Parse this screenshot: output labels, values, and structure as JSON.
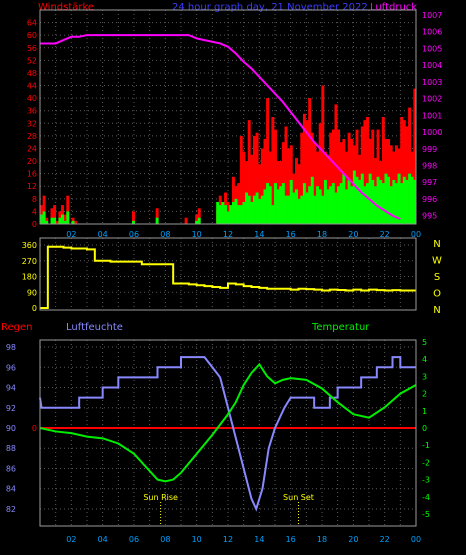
{
  "colors": {
    "background": "#000000",
    "frame": "#9a9a9a",
    "grid": "#5a5a5a",
    "wind_avg": "#ff0000",
    "wind_gust": "#00ff00",
    "wind_dark": "#0a0a0a",
    "pressure": "#ff00ff",
    "direction": "#ffff00",
    "rain": "#ff0000",
    "humidity": "#8888ff",
    "temperature": "#00ee00",
    "temp_axis": "#00ff00",
    "x_ticks": "#00a0ff",
    "press_axis": "#ff00ff",
    "hum_axis": "#8888ff",
    "compass": "#ffff00",
    "sun": "#ffff00"
  },
  "header": {
    "wind_title": "Windstärke",
    "date_title": "24 hour graph day, 21 November 2022",
    "pressure_title": "Luftdruck"
  },
  "chart_data": [
    {
      "type": "bar",
      "title": "Windstärke",
      "x_ticks": [
        "02",
        "04",
        "06",
        "08",
        "10",
        "12",
        "14",
        "16",
        "18",
        "20",
        "22",
        "00"
      ],
      "y_ticks": [
        0,
        4,
        8,
        12,
        16,
        20,
        24,
        28,
        32,
        36,
        40,
        44,
        48,
        52,
        56,
        60,
        64
      ],
      "ylim": [
        0,
        68
      ],
      "series": [
        {
          "name": "Windstärke",
          "samples_per_hour": 6,
          "values": [
            6,
            9,
            2,
            0,
            5,
            6,
            1,
            4,
            6,
            3,
            9,
            0,
            2,
            1,
            0,
            0,
            0,
            0,
            0,
            0,
            0,
            0,
            0,
            0,
            0,
            0,
            0,
            0,
            0,
            0,
            0,
            0,
            0,
            0,
            0,
            4,
            0,
            0,
            0,
            0,
            0,
            0,
            0,
            0,
            5,
            0,
            0,
            0,
            0,
            0,
            0,
            0,
            0,
            0,
            0,
            2,
            0,
            0,
            0,
            3,
            5,
            0,
            0,
            0,
            0,
            0,
            0,
            4,
            9,
            6,
            10,
            7,
            6,
            15,
            12,
            13,
            28,
            23,
            20,
            33,
            22,
            28,
            29,
            19,
            24,
            27,
            40,
            23,
            34,
            30,
            20,
            20,
            26,
            31,
            24,
            25,
            16,
            21,
            19,
            29,
            35,
            33,
            40,
            29,
            26,
            23,
            32,
            44,
            23,
            22,
            29,
            30,
            38,
            30,
            26,
            27,
            23,
            29,
            27,
            25,
            30,
            22,
            31,
            33,
            34,
            27,
            30,
            21,
            30,
            20,
            34,
            27,
            27,
            25,
            23,
            25,
            24,
            34,
            33,
            31,
            37,
            23,
            43
          ]
        },
        {
          "name": "Böen",
          "samples_per_hour": 6,
          "values": [
            3,
            4,
            1,
            0,
            2,
            2,
            0,
            2,
            3,
            1,
            4,
            0,
            1,
            0,
            0,
            0,
            0,
            0,
            0,
            0,
            0,
            0,
            0,
            0,
            0,
            0,
            0,
            0,
            0,
            0,
            0,
            0,
            0,
            0,
            0,
            1,
            0,
            0,
            0,
            0,
            0,
            0,
            0,
            0,
            2,
            0,
            0,
            0,
            0,
            0,
            0,
            0,
            0,
            0,
            0,
            0,
            0,
            0,
            0,
            1,
            2,
            0,
            0,
            0,
            0,
            0,
            0,
            7,
            6,
            7,
            6,
            4,
            6,
            7,
            8,
            6,
            6,
            7,
            10,
            9,
            7,
            9,
            10,
            8,
            9,
            11,
            13,
            12,
            6,
            13,
            11,
            12,
            13,
            9,
            9,
            14,
            10,
            11,
            8,
            9,
            13,
            10,
            12,
            15,
            9,
            12,
            11,
            9,
            14,
            11,
            12,
            13,
            10,
            12,
            13,
            16,
            11,
            14,
            12,
            17,
            15,
            14,
            16,
            12,
            13,
            16,
            14,
            12,
            15,
            14,
            13,
            16,
            15,
            12,
            14,
            13,
            16,
            13,
            15,
            14,
            16,
            15,
            14
          ]
        }
      ]
    },
    {
      "type": "line",
      "title": "Luftdruck",
      "y_ticks": [
        995,
        996,
        997,
        998,
        999,
        1000,
        1001,
        1002,
        1003,
        1004,
        1005,
        1006,
        1007
      ],
      "ylim": [
        994.5,
        1007.3
      ],
      "samples_per_hour": 2,
      "values": [
        1005.3,
        1005.3,
        1005.3,
        1005.5,
        1005.7,
        1005.7,
        1005.8,
        1005.8,
        1005.8,
        1005.8,
        1005.8,
        1005.8,
        1005.8,
        1005.8,
        1005.8,
        1005.8,
        1005.8,
        1005.8,
        1005.8,
        1005.8,
        1005.6,
        1005.5,
        1005.4,
        1005.3,
        1005.1,
        1004.7,
        1004.2,
        1003.8,
        1003.3,
        1002.8,
        1002.3,
        1001.8,
        1001.2,
        1000.6,
        1000,
        999.4,
        998.9,
        998.4,
        997.9,
        997.4,
        996.9,
        996.4,
        996,
        995.6,
        995.3,
        995,
        994.8
      ]
    },
    {
      "type": "line",
      "title": "",
      "y_ticks": [
        0,
        90,
        180,
        270,
        360
      ],
      "ylim": [
        0,
        360
      ],
      "compass_labels": [
        "N",
        "W",
        "S",
        "O",
        "N"
      ],
      "samples_per_hour": 2,
      "values": [
        0,
        350,
        350,
        345,
        340,
        340,
        335,
        270,
        270,
        265,
        265,
        265,
        265,
        250,
        250,
        250,
        250,
        140,
        140,
        135,
        130,
        125,
        120,
        115,
        140,
        135,
        125,
        120,
        115,
        110,
        110,
        110,
        105,
        110,
        108,
        105,
        100,
        105,
        103,
        100,
        105,
        100,
        105,
        102,
        100,
        102,
        100
      ]
    },
    {
      "type": "line",
      "title": "",
      "series_labels": [
        "Regen",
        "Luftfeuchte",
        "Temperatur"
      ],
      "hum_ticks": [
        82,
        84,
        86,
        88,
        90,
        92,
        94,
        96,
        98
      ],
      "hum_lim": [
        81.5,
        98.5
      ],
      "temp_ticks": [
        -5,
        -4,
        -3,
        -2,
        -1,
        0,
        1,
        2,
        3,
        4,
        5
      ],
      "temp_lim": [
        -5.2,
        5.2
      ],
      "rain_value": 0,
      "annotations": {
        "sunrise": "Sun Rise",
        "sunset": "Sun Set"
      },
      "sunrise_hour": 7.7,
      "sunset_hour": 16.5,
      "humidity_points": [
        [
          0,
          93
        ],
        [
          0.1,
          92
        ],
        [
          2.5,
          92
        ],
        [
          2.5,
          93
        ],
        [
          4,
          93
        ],
        [
          4,
          94
        ],
        [
          5,
          94
        ],
        [
          5,
          95
        ],
        [
          7.5,
          95
        ],
        [
          7.5,
          96
        ],
        [
          9,
          96
        ],
        [
          9,
          97
        ],
        [
          10.5,
          97
        ],
        [
          11,
          96
        ],
        [
          11.5,
          95
        ],
        [
          12,
          92
        ],
        [
          12.5,
          89
        ],
        [
          13,
          86
        ],
        [
          13.5,
          83
        ],
        [
          13.8,
          82
        ],
        [
          14.2,
          84
        ],
        [
          14.6,
          88
        ],
        [
          15,
          90
        ],
        [
          15.3,
          91
        ],
        [
          15.6,
          92
        ],
        [
          16,
          93
        ],
        [
          17.5,
          93
        ],
        [
          17.5,
          92
        ],
        [
          18.5,
          92
        ],
        [
          18.5,
          93
        ],
        [
          19,
          93
        ],
        [
          19,
          94
        ],
        [
          20.5,
          94
        ],
        [
          20.5,
          95
        ],
        [
          21.5,
          95
        ],
        [
          21.5,
          96
        ],
        [
          22.5,
          96
        ],
        [
          22.5,
          97
        ],
        [
          23,
          97
        ],
        [
          23,
          96
        ],
        [
          24,
          96
        ]
      ],
      "temperature_points": [
        [
          0,
          0
        ],
        [
          1,
          -0.2
        ],
        [
          2,
          -0.3
        ],
        [
          3,
          -0.5
        ],
        [
          4,
          -0.6
        ],
        [
          5,
          -0.9
        ],
        [
          6,
          -1.5
        ],
        [
          7,
          -2.5
        ],
        [
          7.5,
          -3
        ],
        [
          8,
          -3.1
        ],
        [
          8.5,
          -3
        ],
        [
          9,
          -2.6
        ],
        [
          10,
          -1.5
        ],
        [
          11,
          -0.4
        ],
        [
          12,
          0.8
        ],
        [
          12.5,
          1.5
        ],
        [
          13,
          2.5
        ],
        [
          13.5,
          3.2
        ],
        [
          14,
          3.7
        ],
        [
          14.5,
          3
        ],
        [
          15,
          2.6
        ],
        [
          15.5,
          2.8
        ],
        [
          16,
          2.9
        ],
        [
          17,
          2.8
        ],
        [
          18,
          2.3
        ],
        [
          19,
          1.5
        ],
        [
          20,
          0.8
        ],
        [
          21,
          0.6
        ],
        [
          22,
          1.2
        ],
        [
          23,
          2
        ],
        [
          24,
          2.5
        ]
      ]
    }
  ]
}
